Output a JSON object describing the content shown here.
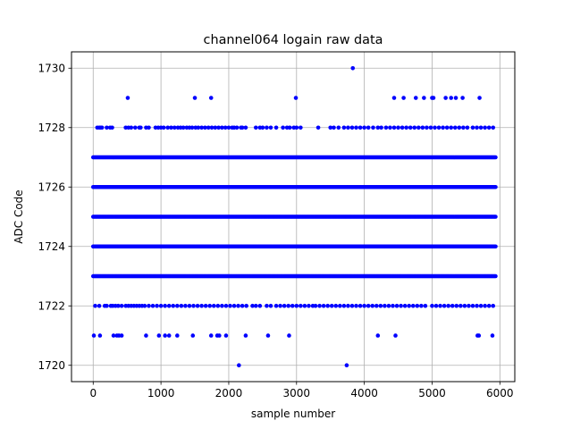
{
  "chart_data": {
    "type": "scatter",
    "title": "channel064 logain raw data",
    "xlabel": "sample number",
    "ylabel": "ADC Code",
    "xlim": [
      -320,
      6220
    ],
    "ylim": [
      1719.45,
      1730.55
    ],
    "xticks": [
      0,
      1000,
      2000,
      3000,
      4000,
      5000,
      6000
    ],
    "yticks": [
      1720,
      1722,
      1724,
      1726,
      1728,
      1730
    ],
    "grid": true,
    "point_color": "#0000ff",
    "x_range": [
      0,
      5940
    ],
    "dense_levels": [
      1723,
      1724,
      1725,
      1726,
      1727
    ],
    "sparse_points": [
      {
        "y": 1730,
        "x": [
          3830
        ]
      },
      {
        "y": 1729,
        "x": [
          510,
          1500,
          1740,
          2990,
          4440,
          4580,
          4760,
          4880,
          5000,
          5020,
          5200,
          5280,
          5350,
          5450,
          5700
        ]
      },
      {
        "y": 1728,
        "x": [
          60,
          90,
          110,
          130,
          200,
          250,
          280,
          480,
          520,
          560,
          620,
          680,
          700,
          780,
          820,
          920,
          960,
          1000,
          1040,
          1100,
          1150,
          1200,
          1250,
          1290,
          1330,
          1380,
          1420,
          1460,
          1510,
          1550,
          1600,
          1650,
          1700,
          1750,
          1800,
          1850,
          1900,
          1950,
          2000,
          2050,
          2080,
          2120,
          2180,
          2200,
          2250,
          2400,
          2460,
          2500,
          2560,
          2620,
          2700,
          2800,
          2860,
          2900,
          2960,
          3000,
          3060,
          3320,
          3500,
          3550,
          3620,
          3700,
          3760,
          3820,
          3880,
          3940,
          4000,
          4060,
          4130,
          4200,
          4250,
          4320,
          4380,
          4440,
          4500,
          4560,
          4620,
          4680,
          4740,
          4800,
          4860,
          4920,
          4980,
          5040,
          5100,
          5160,
          5220,
          5280,
          5340,
          5400,
          5460,
          5520,
          5600,
          5660,
          5720,
          5780,
          5840,
          5900
        ]
      },
      {
        "y": 1722,
        "x": [
          30,
          90,
          170,
          200,
          260,
          290,
          330,
          370,
          420,
          480,
          520,
          560,
          600,
          640,
          680,
          720,
          760,
          820,
          880,
          940,
          1000,
          1060,
          1120,
          1180,
          1240,
          1300,
          1360,
          1420,
          1480,
          1540,
          1600,
          1660,
          1720,
          1780,
          1840,
          1900,
          1960,
          2020,
          2080,
          2140,
          2200,
          2260,
          2350,
          2400,
          2460,
          2560,
          2620,
          2700,
          2760,
          2820,
          2880,
          2940,
          3000,
          3060,
          3120,
          3180,
          3240,
          3280,
          3340,
          3400,
          3460,
          3520,
          3580,
          3640,
          3700,
          3760,
          3820,
          3880,
          3940,
          4000,
          4060,
          4120,
          4180,
          4240,
          4300,
          4360,
          4420,
          4480,
          4540,
          4600,
          4660,
          4720,
          4780,
          4840,
          4900,
          5000,
          5060,
          5120,
          5180,
          5240,
          5300,
          5360,
          5420,
          5480,
          5540,
          5600,
          5660,
          5720,
          5780,
          5840,
          5900
        ]
      },
      {
        "y": 1721,
        "x": [
          10,
          100,
          300,
          350,
          380,
          420,
          780,
          970,
          1060,
          1120,
          1240,
          1470,
          1740,
          1830,
          1860,
          1960,
          2250,
          2580,
          2890,
          4200,
          4460,
          5670,
          5690,
          5890
        ]
      },
      {
        "y": 1720,
        "x": [
          2150,
          3740
        ]
      }
    ]
  }
}
